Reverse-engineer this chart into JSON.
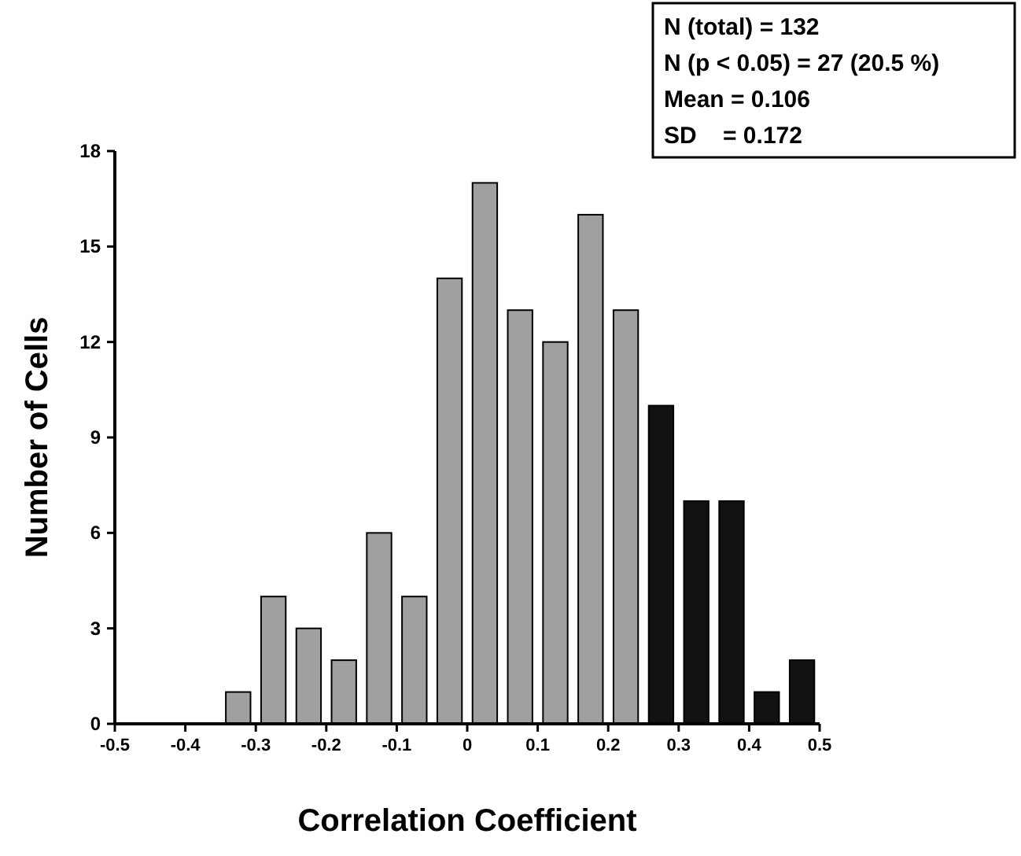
{
  "chart_data": {
    "type": "histogram",
    "xlabel": "Correlation Coefficient",
    "ylabel": "Number of Cells",
    "bins": [
      -0.35,
      -0.3,
      -0.25,
      -0.2,
      -0.15,
      -0.1,
      -0.05,
      0,
      0.05,
      0.1,
      0.15,
      0.2,
      0.25,
      0.3,
      0.35,
      0.4,
      0.45,
      0.5
    ],
    "values": [
      1,
      4,
      3,
      2,
      6,
      4,
      14,
      17,
      13,
      12,
      16,
      13,
      10,
      7,
      7,
      1,
      2
    ],
    "colors": [
      "#a0a0a0",
      "#a0a0a0",
      "#a0a0a0",
      "#a0a0a0",
      "#a0a0a0",
      "#a0a0a0",
      "#a0a0a0",
      "#a0a0a0",
      "#a0a0a0",
      "#a0a0a0",
      "#a0a0a0",
      "#a0a0a0",
      "#111111",
      "#111111",
      "#111111",
      "#111111",
      "#111111"
    ],
    "xlim": [
      -0.5,
      0.5
    ],
    "xticks": [
      -0.5,
      -0.4,
      -0.3,
      -0.2,
      -0.1,
      0,
      0.1,
      0.2,
      0.3,
      0.4,
      0.5
    ],
    "ylim": [
      0,
      18
    ],
    "yticks": [
      0,
      3,
      6,
      9,
      12,
      15,
      18
    ],
    "grid": false,
    "annotations": [
      "N (total) = 132",
      "N (p < 0.05) = 27 (20.5 %)",
      "Mean = 0.106",
      "SD    = 0.172"
    ]
  }
}
